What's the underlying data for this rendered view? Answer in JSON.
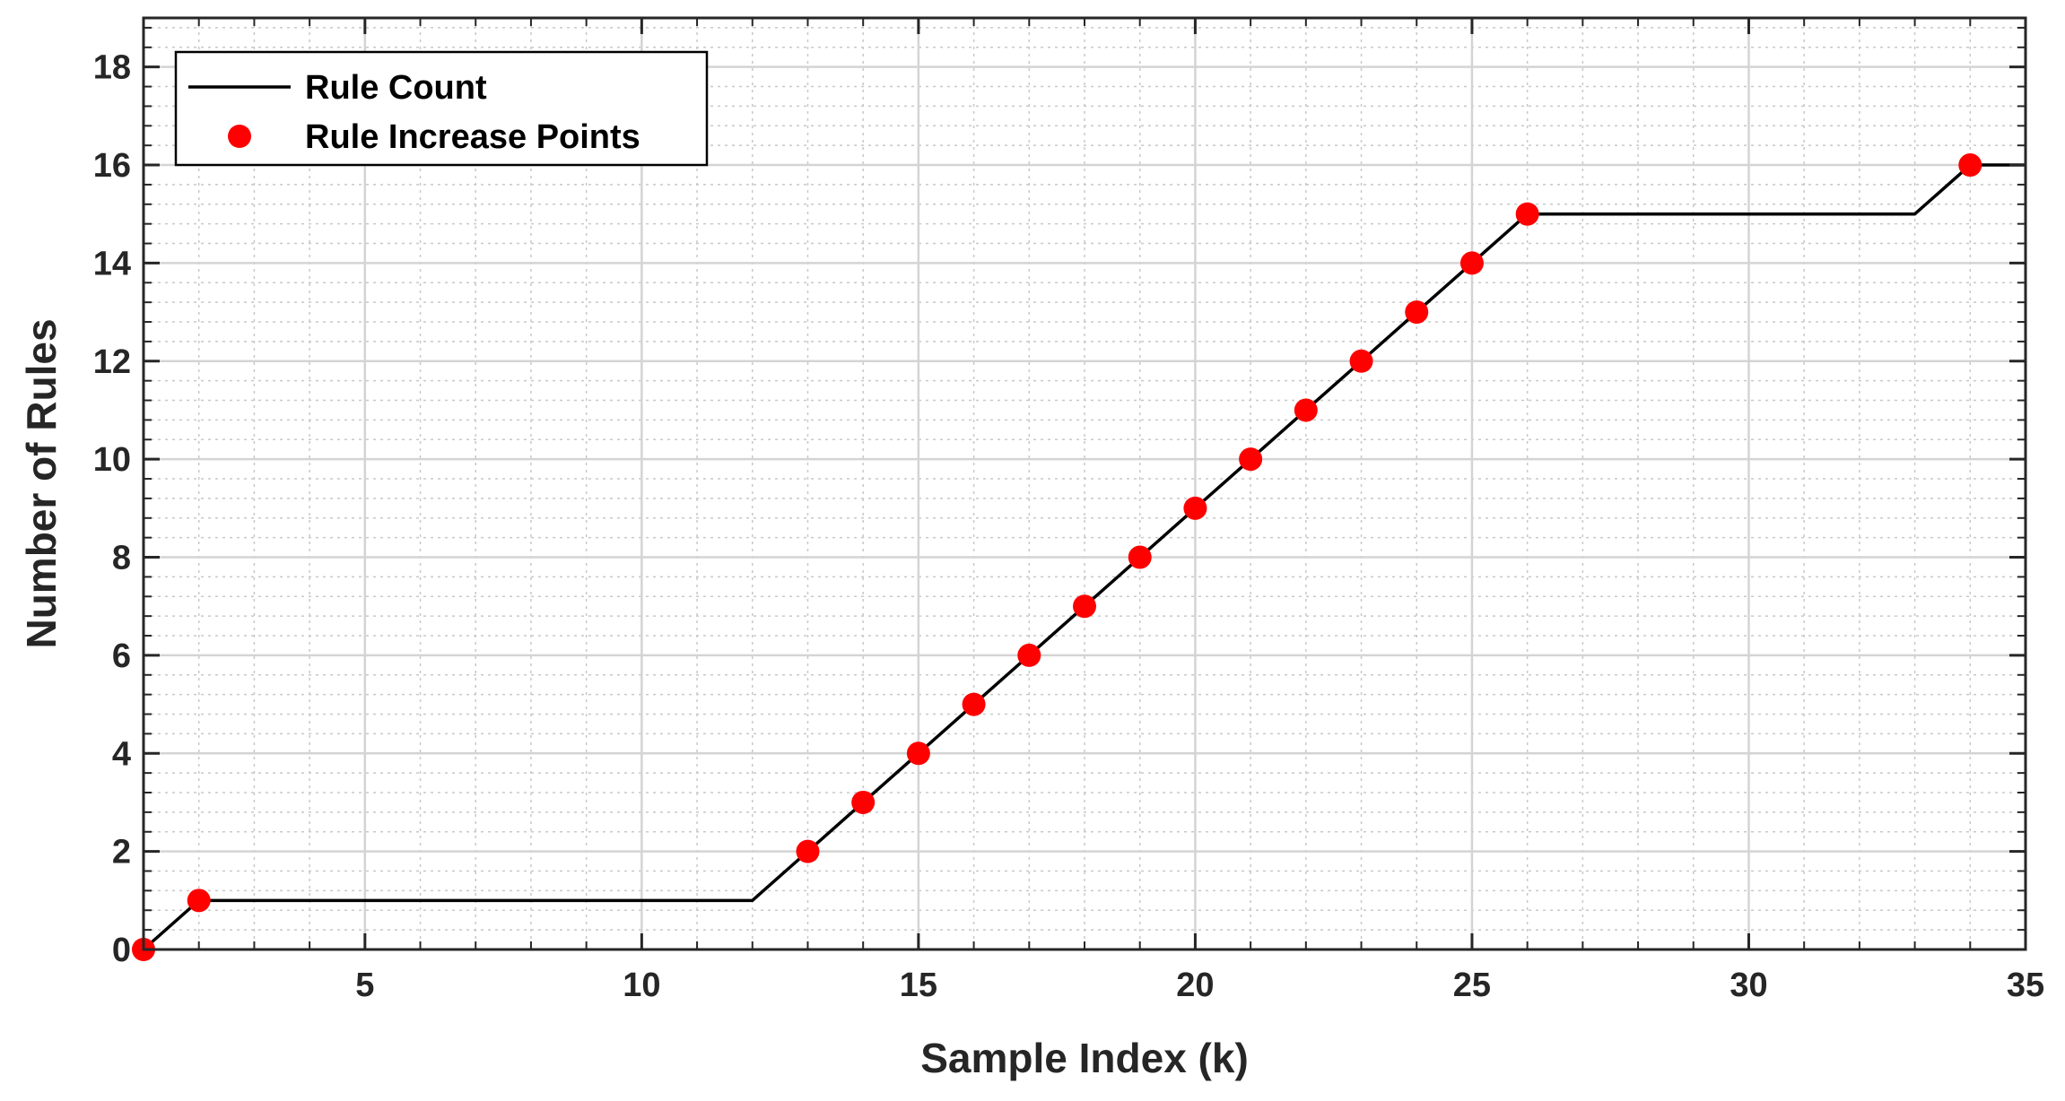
{
  "chart_data": {
    "type": "line",
    "xlabel": "Sample Index (k)",
    "ylabel": "Number of Rules",
    "xlim": [
      1,
      35
    ],
    "ylim": [
      0,
      19
    ],
    "xticks": [
      5,
      10,
      15,
      20,
      25,
      30,
      35
    ],
    "yticks": [
      0,
      2,
      4,
      6,
      8,
      10,
      12,
      14,
      16,
      18
    ],
    "grid": true,
    "minor_grid": true,
    "legend_position": "top-left",
    "series": [
      {
        "name": "Rule Count",
        "kind": "line",
        "color": "#000000",
        "x": [
          1,
          2,
          3,
          4,
          5,
          6,
          7,
          8,
          9,
          10,
          11,
          12,
          13,
          14,
          15,
          16,
          17,
          18,
          19,
          20,
          21,
          22,
          23,
          24,
          25,
          26,
          27,
          28,
          29,
          30,
          31,
          32,
          33,
          34,
          35
        ],
        "y": [
          0,
          1,
          1,
          1,
          1,
          1,
          1,
          1,
          1,
          1,
          1,
          1,
          2,
          3,
          4,
          5,
          6,
          7,
          8,
          9,
          10,
          11,
          12,
          13,
          14,
          15,
          15,
          15,
          15,
          15,
          15,
          15,
          15,
          16,
          16
        ]
      },
      {
        "name": "Rule Increase Points",
        "kind": "scatter",
        "color": "#ff0000",
        "x": [
          1,
          2,
          13,
          14,
          15,
          16,
          17,
          18,
          19,
          20,
          21,
          22,
          23,
          24,
          25,
          26,
          34
        ],
        "y": [
          0,
          1,
          2,
          3,
          4,
          5,
          6,
          7,
          8,
          9,
          10,
          11,
          12,
          13,
          14,
          15,
          16
        ]
      }
    ]
  }
}
